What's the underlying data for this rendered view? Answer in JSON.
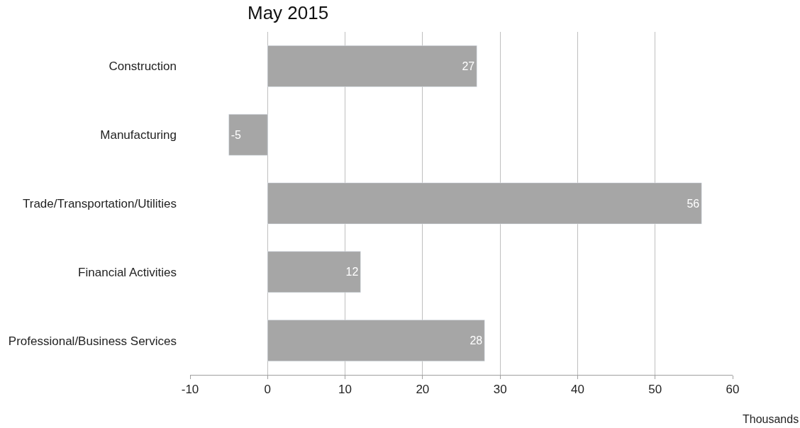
{
  "chart_data": {
    "type": "bar",
    "orientation": "horizontal",
    "title": "May 2015",
    "xlabel": "Thousands",
    "categories": [
      "Construction",
      "Manufacturing",
      "Trade/Transportation/Utilities",
      "Financial Activities",
      "Professional/Business Services"
    ],
    "values": [
      27,
      -5,
      56,
      12,
      28
    ],
    "color": "#a6a6a6",
    "data_labels": true,
    "xlim": [
      -10,
      60
    ],
    "xticks": [
      -10,
      0,
      10,
      20,
      30,
      40,
      50,
      60
    ],
    "grid": "x",
    "legend": false
  }
}
